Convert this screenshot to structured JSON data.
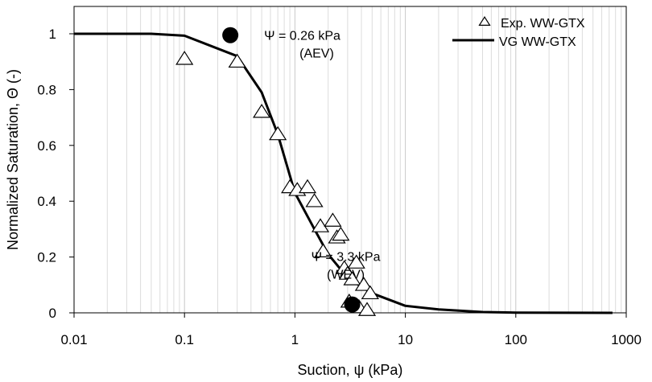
{
  "chart_data": {
    "type": "scatter",
    "xscale": "log",
    "xlim": [
      0.01,
      1000
    ],
    "ylim": [
      0,
      1.0
    ],
    "xlabel": "Suction, ψ (kPa)",
    "ylabel": "Normalized Saturation, Θ (-)",
    "grid": "vertical minor log gridlines",
    "legend_position": "top-right",
    "x_ticks": [
      {
        "value": 0.01,
        "label": "0.01"
      },
      {
        "value": 0.1,
        "label": "0.1"
      },
      {
        "value": 1,
        "label": "1"
      },
      {
        "value": 10,
        "label": "10"
      },
      {
        "value": 100,
        "label": "100"
      },
      {
        "value": 1000,
        "label": "1000"
      }
    ],
    "y_ticks": [
      {
        "value": 0,
        "label": "0"
      },
      {
        "value": 0.2,
        "label": "0.2"
      },
      {
        "value": 0.4,
        "label": "0.4"
      },
      {
        "value": 0.6,
        "label": "0.6"
      },
      {
        "value": 0.8,
        "label": "0.8"
      },
      {
        "value": 1,
        "label": "1"
      }
    ],
    "series": [
      {
        "name": "Exp. WW-GTX",
        "kind": "scatter",
        "marker": "open-triangle",
        "color": "#000000",
        "points": [
          [
            0.1,
            0.91
          ],
          [
            0.3,
            0.9
          ],
          [
            0.5,
            0.72
          ],
          [
            0.7,
            0.64
          ],
          [
            0.9,
            0.45
          ],
          [
            1.05,
            0.44
          ],
          [
            1.3,
            0.45
          ],
          [
            1.5,
            0.4
          ],
          [
            1.7,
            0.31
          ],
          [
            1.8,
            0.22
          ],
          [
            2.2,
            0.33
          ],
          [
            2.4,
            0.27
          ],
          [
            2.6,
            0.28
          ],
          [
            2.8,
            0.16
          ],
          [
            3.0,
            0.14
          ],
          [
            3.3,
            0.12
          ],
          [
            3.6,
            0.18
          ],
          [
            3.8,
            0.02
          ],
          [
            4.2,
            0.1
          ],
          [
            4.5,
            0.01
          ],
          [
            4.8,
            0.07
          ],
          [
            3.1,
            0.04
          ]
        ]
      },
      {
        "name": "VG WW-GTX",
        "kind": "line",
        "color": "#000000",
        "points": [
          [
            0.01,
            1.0
          ],
          [
            0.05,
            1.0
          ],
          [
            0.1,
            0.993
          ],
          [
            0.3,
            0.92
          ],
          [
            0.5,
            0.79
          ],
          [
            0.7,
            0.64
          ],
          [
            1.0,
            0.43
          ],
          [
            1.5,
            0.3
          ],
          [
            2.0,
            0.21
          ],
          [
            3.0,
            0.125
          ],
          [
            5.0,
            0.07
          ],
          [
            10.0,
            0.025
          ],
          [
            20.0,
            0.012
          ],
          [
            50.0,
            0.003
          ],
          [
            100.0,
            0.001
          ],
          [
            750.0,
            0.0
          ]
        ]
      }
    ],
    "highlight_points": [
      {
        "x": 0.26,
        "y": 0.995,
        "lines": [
          "Ψ = 0.26 kPa",
          "(AEV)"
        ]
      },
      {
        "x": 3.3,
        "y": 0.03,
        "lines": [
          "Ψ = 3.3 kPa",
          "(WEV)"
        ]
      }
    ]
  }
}
